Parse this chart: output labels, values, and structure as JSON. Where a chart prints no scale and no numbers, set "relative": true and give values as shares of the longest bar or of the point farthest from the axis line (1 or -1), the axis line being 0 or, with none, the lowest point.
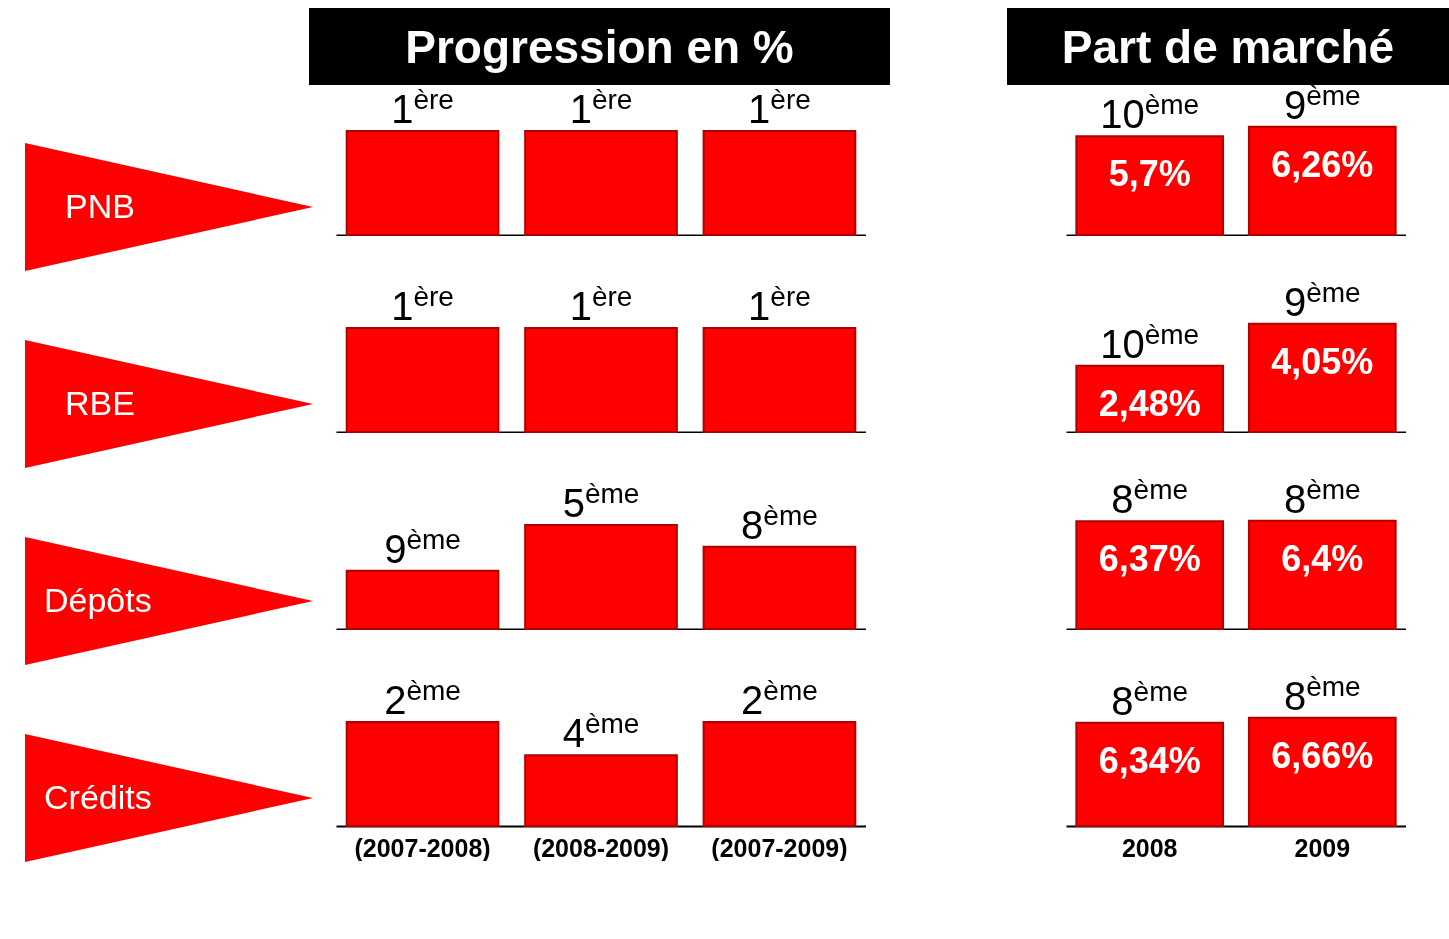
{
  "chart_data": [
    {
      "type": "bar",
      "title": "Progression en %",
      "ylabel": "PNB",
      "relative": true,
      "categories": [
        "(2007-2008)",
        "(2008-2009)",
        "(2007-2009)"
      ],
      "values": [
        1,
        1,
        1
      ],
      "color": "#ff0000",
      "tick_labels": false,
      "annotations": [
        {
          "text": "1$^{ère}$",
          "x": "(2007-2008)",
          "y": 1
        },
        {
          "text": "1$^{ère}$",
          "x": "(2008-2009)",
          "y": 1
        },
        {
          "text": "1$^{ère}$",
          "x": "(2007-2009)",
          "y": 1
        }
      ]
    },
    {
      "type": "bar",
      "title": "Part de marché",
      "categories": [
        "2008",
        "2009"
      ],
      "values": [
        5.7,
        6.26
      ],
      "value_labels": [
        "5,7%",
        "6,26%"
      ],
      "color": "#ff0000",
      "tick_labels": false,
      "annotations": [
        {
          "text": "10$^{ème}$",
          "x": "2008",
          "y": 5.7
        },
        {
          "text": "9$^{ème}$",
          "x": "2009",
          "y": 6.26
        }
      ]
    },
    {
      "type": "bar",
      "ylabel": "RBE",
      "relative": true,
      "categories": [
        "(2007-2008)",
        "(2008-2009)",
        "(2007-2009)"
      ],
      "values": [
        1,
        1,
        1
      ],
      "color": "#ff0000",
      "tick_labels": false,
      "annotations": [
        {
          "text": "1$^{ère}$",
          "x": "(2007-2008)",
          "y": 1
        },
        {
          "text": "1$^{ère}$",
          "x": "(2008-2009)",
          "y": 1
        },
        {
          "text": "1$^{ère}$",
          "x": "(2007-2009)",
          "y": 1
        }
      ]
    },
    {
      "type": "bar",
      "categories": [
        "2008",
        "2009"
      ],
      "values": [
        2.48,
        4.05
      ],
      "value_labels": [
        "2,48%",
        "4,05%"
      ],
      "color": "#ff0000",
      "tick_labels": false,
      "annotations": [
        {
          "text": "10$^{ème}$",
          "x": "2008",
          "y": 2.48
        },
        {
          "text": "9$^{ème}$",
          "x": "2009",
          "y": 4.05
        }
      ]
    },
    {
      "type": "bar",
      "ylabel": "Dépôts",
      "relative": true,
      "categories": [
        "(2007-2008)",
        "(2008-2009)",
        "(2007-2009)"
      ],
      "values": [
        0.56,
        1,
        0.79
      ],
      "color": "#ff0000",
      "tick_labels": false,
      "annotations": [
        {
          "text": "9$^{ème}$",
          "x": "(2007-2008)",
          "y": 0.56
        },
        {
          "text": "5$^{ème}$",
          "x": "(2008-2009)",
          "y": 1
        },
        {
          "text": "8$^{ème}$",
          "x": "(2007-2009)",
          "y": 0.79
        }
      ]
    },
    {
      "type": "bar",
      "categories": [
        "2008",
        "2009"
      ],
      "values": [
        6.37,
        6.4
      ],
      "value_labels": [
        "6,37%",
        "6,4%"
      ],
      "color": "#ff0000",
      "tick_labels": false,
      "annotations": [
        {
          "text": "8$^{ème}$",
          "x": "2008",
          "y": 6.37
        },
        {
          "text": "8$^{ème}$",
          "x": "2009",
          "y": 6.4
        }
      ]
    },
    {
      "type": "bar",
      "ylabel": "Crédits",
      "relative": true,
      "categories": [
        "(2007-2008)",
        "(2008-2009)",
        "(2007-2009)"
      ],
      "values": [
        1,
        0.68,
        1
      ],
      "color": "#ff0000",
      "tick_labels": "x",
      "annotations": [
        {
          "text": "2$^{ème}$",
          "x": "(2007-2008)",
          "y": 1
        },
        {
          "text": "4$^{ème}$",
          "x": "(2008-2009)",
          "y": 0.68
        },
        {
          "text": "2$^{ème}$",
          "x": "(2007-2009)",
          "y": 1
        }
      ]
    },
    {
      "type": "bar",
      "categories": [
        "2008",
        "2009"
      ],
      "values": [
        6.34,
        6.66
      ],
      "value_labels": [
        "6,34%",
        "6,66%"
      ],
      "color": "#ff0000",
      "tick_labels": "x",
      "annotations": [
        {
          "text": "8$^{ème}$",
          "x": "2008",
          "y": 6.34
        },
        {
          "text": "8$^{ème}$",
          "x": "2009",
          "y": 6.66
        }
      ]
    }
  ]
}
